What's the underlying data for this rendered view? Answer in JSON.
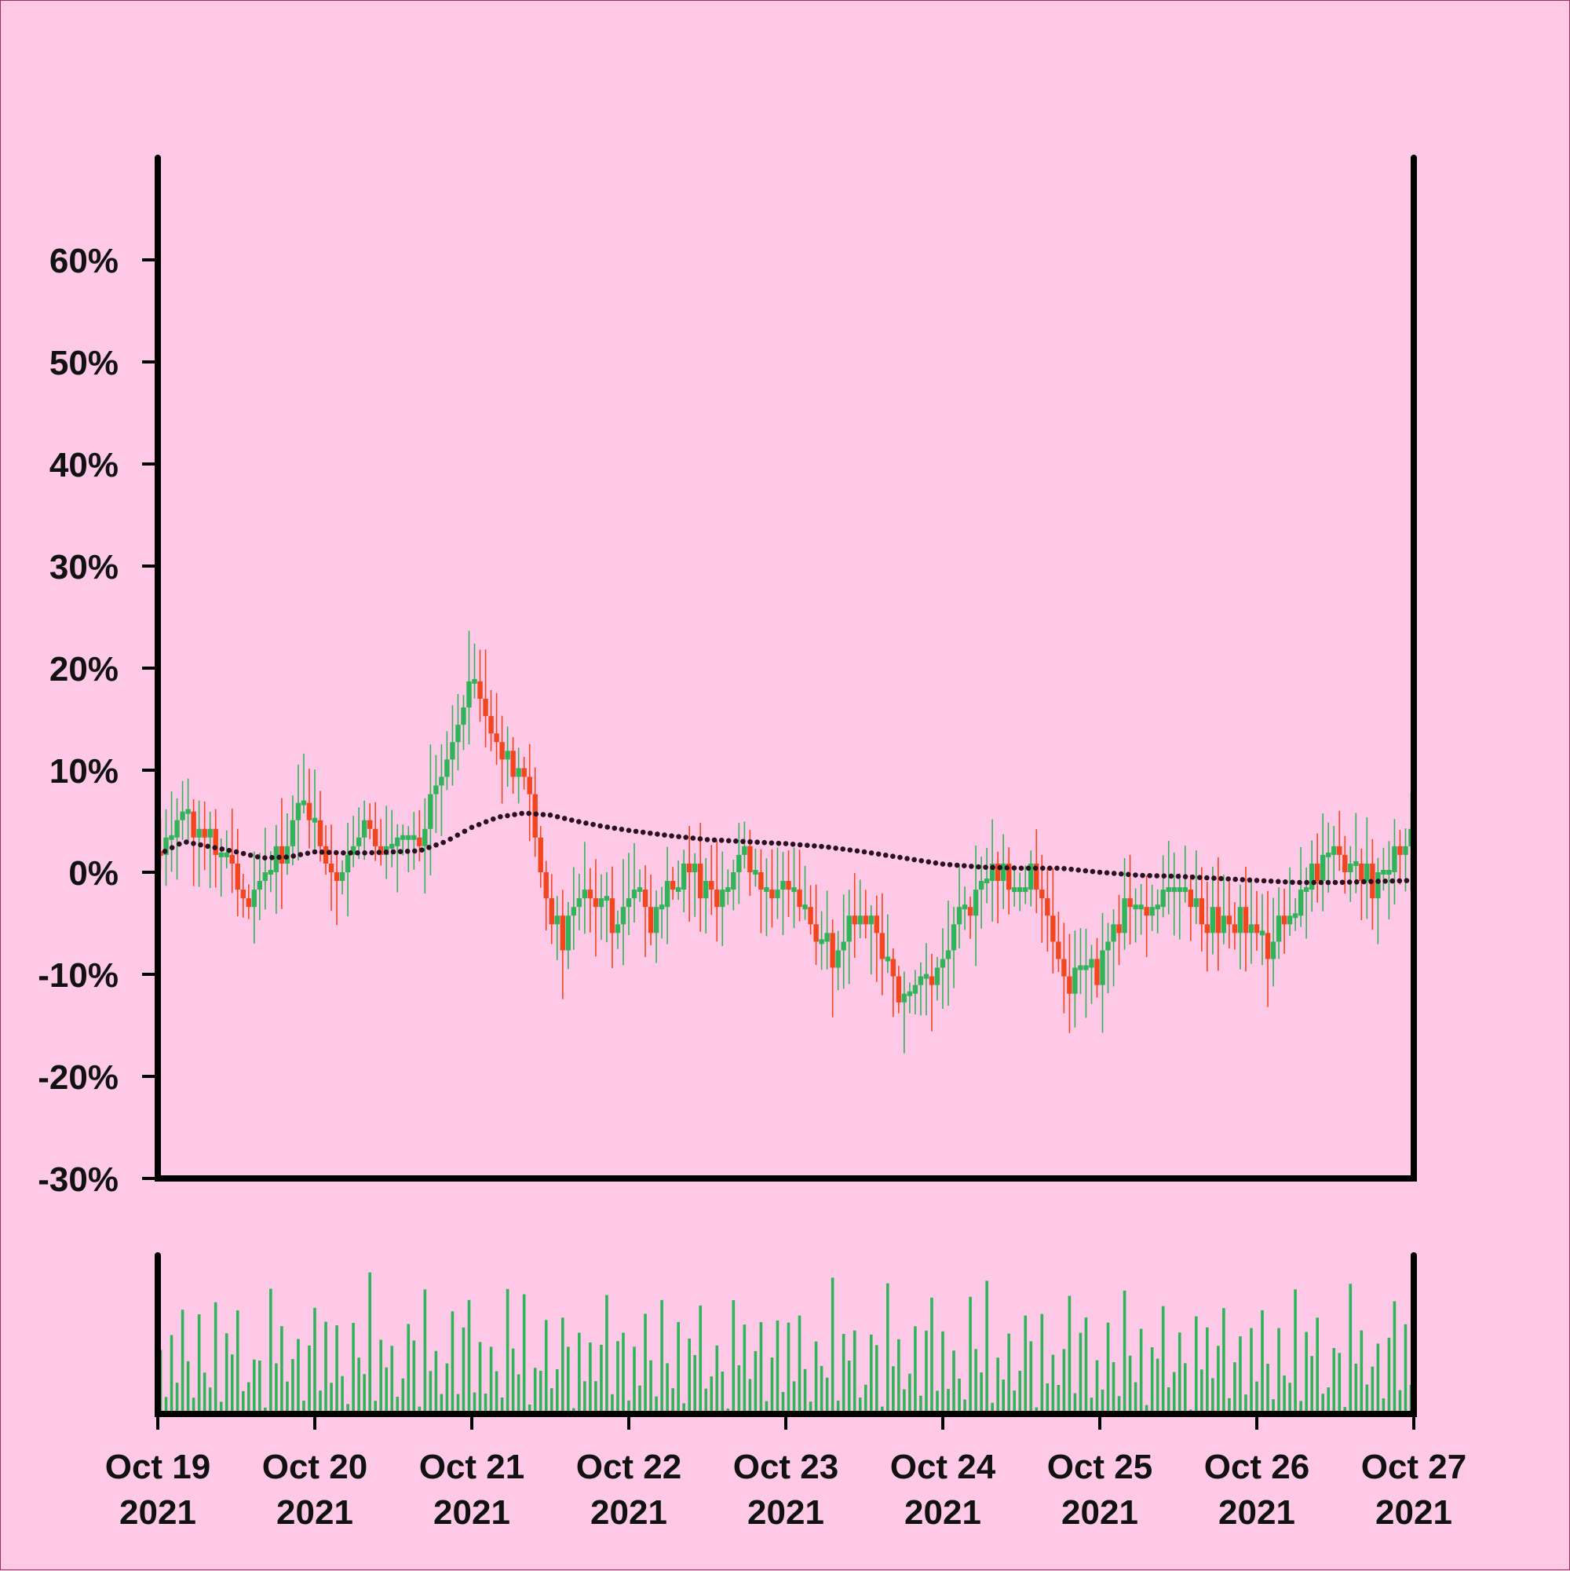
{
  "chart_data": {
    "type": "candlestick",
    "colors": {
      "background": "#fdc9e6",
      "up": "#2fb45a",
      "down": "#f2461e",
      "ma_line": "#2a1020",
      "volume": "#2fb45a",
      "axis": "#000000"
    },
    "y_axis": {
      "format": "percent",
      "ticks": [
        "60%",
        "50%",
        "40%",
        "30%",
        "20%",
        "10%",
        "0%",
        "-10%",
        "-20%",
        "-30%"
      ],
      "tick_values": [
        60,
        50,
        40,
        30,
        20,
        10,
        0,
        -10,
        -20,
        -30
      ],
      "ylim": [
        -30,
        70
      ]
    },
    "x_axis": {
      "type": "date",
      "range": [
        "2021-10-19",
        "2021-10-27"
      ],
      "ticks": [
        {
          "date": "2021-10-19",
          "line1": "Oct 19",
          "line2": "2021"
        },
        {
          "date": "2021-10-20",
          "line1": "Oct 20",
          "line2": "2021"
        },
        {
          "date": "2021-10-21",
          "line1": "Oct 21",
          "line2": "2021"
        },
        {
          "date": "2021-10-22",
          "line1": "Oct 22",
          "line2": "2021"
        },
        {
          "date": "2021-10-23",
          "line1": "Oct 23",
          "line2": "2021"
        },
        {
          "date": "2021-10-24",
          "line1": "Oct 24",
          "line2": "2021"
        },
        {
          "date": "2021-10-25",
          "line1": "Oct 25",
          "line2": "2021"
        },
        {
          "date": "2021-10-26",
          "line1": "Oct 26",
          "line2": "2021"
        },
        {
          "date": "2021-10-27",
          "line1": "Oct 27",
          "line2": "2021"
        }
      ]
    },
    "close_path": [
      {
        "t": "2021-10-19 00:00",
        "y": 2
      },
      {
        "t": "2021-10-19 02:00",
        "y": 3
      },
      {
        "t": "2021-10-19 04:00",
        "y": 5
      },
      {
        "t": "2021-10-19 06:00",
        "y": 4
      },
      {
        "t": "2021-10-19 08:00",
        "y": 3
      },
      {
        "t": "2021-10-19 10:00",
        "y": 2
      },
      {
        "t": "2021-10-19 12:00",
        "y": 0
      },
      {
        "t": "2021-10-19 14:00",
        "y": -3
      },
      {
        "t": "2021-10-19 16:00",
        "y": -1
      },
      {
        "t": "2021-10-19 18:00",
        "y": 1
      },
      {
        "t": "2021-10-19 20:00",
        "y": 3
      },
      {
        "t": "2021-10-19 22:00",
        "y": 7
      },
      {
        "t": "2021-10-20 00:00",
        "y": 5
      },
      {
        "t": "2021-10-20 02:00",
        "y": 2
      },
      {
        "t": "2021-10-20 04:00",
        "y": -1
      },
      {
        "t": "2021-10-20 06:00",
        "y": 2
      },
      {
        "t": "2021-10-20 08:00",
        "y": 5
      },
      {
        "t": "2021-10-20 10:00",
        "y": 1
      },
      {
        "t": "2021-10-20 12:00",
        "y": 3
      },
      {
        "t": "2021-10-20 14:00",
        "y": 3
      },
      {
        "t": "2021-10-20 16:00",
        "y": 3
      },
      {
        "t": "2021-10-20 18:00",
        "y": 7
      },
      {
        "t": "2021-10-20 20:00",
        "y": 10
      },
      {
        "t": "2021-10-20 22:00",
        "y": 14
      },
      {
        "t": "2021-10-21 00:00",
        "y": 19
      },
      {
        "t": "2021-10-21 02:00",
        "y": 17
      },
      {
        "t": "2021-10-21 04:00",
        "y": 12
      },
      {
        "t": "2021-10-21 06:00",
        "y": 11
      },
      {
        "t": "2021-10-21 08:00",
        "y": 10
      },
      {
        "t": "2021-10-21 10:00",
        "y": 4
      },
      {
        "t": "2021-10-21 12:00",
        "y": -3
      },
      {
        "t": "2021-10-21 14:00",
        "y": -7
      },
      {
        "t": "2021-10-21 16:00",
        "y": -4
      },
      {
        "t": "2021-10-21 18:00",
        "y": -2
      },
      {
        "t": "2021-10-21 20:00",
        "y": -3
      },
      {
        "t": "2021-10-21 22:00",
        "y": -5
      },
      {
        "t": "2021-10-22 00:00",
        "y": -3
      },
      {
        "t": "2021-10-22 02:00",
        "y": -2
      },
      {
        "t": "2021-10-22 04:00",
        "y": -5
      },
      {
        "t": "2021-10-22 06:00",
        "y": -2
      },
      {
        "t": "2021-10-22 08:00",
        "y": -1
      },
      {
        "t": "2021-10-22 10:00",
        "y": 0
      },
      {
        "t": "2021-10-22 12:00",
        "y": -2
      },
      {
        "t": "2021-10-22 14:00",
        "y": -3
      },
      {
        "t": "2021-10-22 16:00",
        "y": -1
      },
      {
        "t": "2021-10-22 18:00",
        "y": 2
      },
      {
        "t": "2021-10-22 20:00",
        "y": -1
      },
      {
        "t": "2021-10-22 22:00",
        "y": -3
      },
      {
        "t": "2021-10-23 00:00",
        "y": -1
      },
      {
        "t": "2021-10-23 02:00",
        "y": -2
      },
      {
        "t": "2021-10-23 04:00",
        "y": -5
      },
      {
        "t": "2021-10-23 06:00",
        "y": -7
      },
      {
        "t": "2021-10-23 08:00",
        "y": -8
      },
      {
        "t": "2021-10-23 10:00",
        "y": -6
      },
      {
        "t": "2021-10-23 12:00",
        "y": -5
      },
      {
        "t": "2021-10-23 14:00",
        "y": -6
      },
      {
        "t": "2021-10-23 16:00",
        "y": -9
      },
      {
        "t": "2021-10-23 18:00",
        "y": -12
      },
      {
        "t": "2021-10-23 20:00",
        "y": -11
      },
      {
        "t": "2021-10-23 22:00",
        "y": -10
      },
      {
        "t": "2021-10-24 00:00",
        "y": -9
      },
      {
        "t": "2021-10-24 02:00",
        "y": -5
      },
      {
        "t": "2021-10-24 04:00",
        "y": -3
      },
      {
        "t": "2021-10-24 06:00",
        "y": -2
      },
      {
        "t": "2021-10-24 08:00",
        "y": 1
      },
      {
        "t": "2021-10-24 10:00",
        "y": -1
      },
      {
        "t": "2021-10-24 12:00",
        "y": -2
      },
      {
        "t": "2021-10-24 14:00",
        "y": 0
      },
      {
        "t": "2021-10-24 16:00",
        "y": -4
      },
      {
        "t": "2021-10-24 18:00",
        "y": -9
      },
      {
        "t": "2021-10-24 20:00",
        "y": -12
      },
      {
        "t": "2021-10-24 22:00",
        "y": -8
      },
      {
        "t": "2021-10-25 00:00",
        "y": -10
      },
      {
        "t": "2021-10-25 02:00",
        "y": -6
      },
      {
        "t": "2021-10-25 04:00",
        "y": -4
      },
      {
        "t": "2021-10-25 06:00",
        "y": -3
      },
      {
        "t": "2021-10-25 08:00",
        "y": -4
      },
      {
        "t": "2021-10-25 10:00",
        "y": -2
      },
      {
        "t": "2021-10-25 12:00",
        "y": -1
      },
      {
        "t": "2021-10-25 14:00",
        "y": -3
      },
      {
        "t": "2021-10-25 16:00",
        "y": -5
      },
      {
        "t": "2021-10-25 18:00",
        "y": -4
      },
      {
        "t": "2021-10-25 20:00",
        "y": -6
      },
      {
        "t": "2021-10-25 22:00",
        "y": -4
      },
      {
        "t": "2021-10-26 00:00",
        "y": -6
      },
      {
        "t": "2021-10-26 02:00",
        "y": -8
      },
      {
        "t": "2021-10-26 04:00",
        "y": -5
      },
      {
        "t": "2021-10-26 06:00",
        "y": -3
      },
      {
        "t": "2021-10-26 08:00",
        "y": -2
      },
      {
        "t": "2021-10-26 10:00",
        "y": 1
      },
      {
        "t": "2021-10-26 12:00",
        "y": 2
      },
      {
        "t": "2021-10-26 14:00",
        "y": 0
      },
      {
        "t": "2021-10-26 16:00",
        "y": 1
      },
      {
        "t": "2021-10-26 18:00",
        "y": -1
      },
      {
        "t": "2021-10-26 20:00",
        "y": 0
      },
      {
        "t": "2021-10-26 22:00",
        "y": 2
      },
      {
        "t": "2021-10-27 00:00",
        "y": 3
      }
    ],
    "moving_average": [
      {
        "t": "2021-10-19 00:00",
        "y": 1.7
      },
      {
        "t": "2021-10-19 04:00",
        "y": 3.0
      },
      {
        "t": "2021-10-19 08:00",
        "y": 2.5
      },
      {
        "t": "2021-10-19 12:00",
        "y": 2.0
      },
      {
        "t": "2021-10-19 16:00",
        "y": 1.4
      },
      {
        "t": "2021-10-19 20:00",
        "y": 1.5
      },
      {
        "t": "2021-10-20 00:00",
        "y": 2.0
      },
      {
        "t": "2021-10-20 04:00",
        "y": 1.9
      },
      {
        "t": "2021-10-20 08:00",
        "y": 1.9
      },
      {
        "t": "2021-10-20 12:00",
        "y": 2.0
      },
      {
        "t": "2021-10-20 16:00",
        "y": 2.1
      },
      {
        "t": "2021-10-20 20:00",
        "y": 3.0
      },
      {
        "t": "2021-10-21 00:00",
        "y": 4.4
      },
      {
        "t": "2021-10-21 04:00",
        "y": 5.4
      },
      {
        "t": "2021-10-21 08:00",
        "y": 5.8
      },
      {
        "t": "2021-10-21 12:00",
        "y": 5.6
      },
      {
        "t": "2021-10-21 16:00",
        "y": 5.0
      },
      {
        "t": "2021-10-21 20:00",
        "y": 4.5
      },
      {
        "t": "2021-10-22 00:00",
        "y": 4.1
      },
      {
        "t": "2021-10-22 06:00",
        "y": 3.6
      },
      {
        "t": "2021-10-22 12:00",
        "y": 3.2
      },
      {
        "t": "2021-10-22 18:00",
        "y": 3.0
      },
      {
        "t": "2021-10-23 00:00",
        "y": 2.8
      },
      {
        "t": "2021-10-23 06:00",
        "y": 2.5
      },
      {
        "t": "2021-10-23 12:00",
        "y": 2.0
      },
      {
        "t": "2021-10-23 18:00",
        "y": 1.4
      },
      {
        "t": "2021-10-24 00:00",
        "y": 0.8
      },
      {
        "t": "2021-10-24 06:00",
        "y": 0.5
      },
      {
        "t": "2021-10-24 12:00",
        "y": 0.4
      },
      {
        "t": "2021-10-24 18:00",
        "y": 0.4
      },
      {
        "t": "2021-10-25 00:00",
        "y": 0.0
      },
      {
        "t": "2021-10-25 06:00",
        "y": -0.3
      },
      {
        "t": "2021-10-25 12:00",
        "y": -0.4
      },
      {
        "t": "2021-10-25 18:00",
        "y": -0.6
      },
      {
        "t": "2021-10-26 00:00",
        "y": -0.8
      },
      {
        "t": "2021-10-26 06:00",
        "y": -1.0
      },
      {
        "t": "2021-10-26 12:00",
        "y": -1.0
      },
      {
        "t": "2021-10-26 18:00",
        "y": -0.9
      },
      {
        "t": "2021-10-27 00:00",
        "y": -0.8
      }
    ],
    "volume_pattern": [
      0.78,
      0.16,
      0.62,
      0.22,
      0.7,
      0.36,
      0.12,
      0.85,
      0.44,
      0.28,
      0.95,
      0.09,
      0.55,
      0.4,
      0.73,
      0.18,
      0.3,
      0.66,
      0.5,
      0.05,
      0.88,
      0.34,
      0.6,
      0.24,
      0.47,
      0.8,
      0.14,
      0.58
    ]
  }
}
